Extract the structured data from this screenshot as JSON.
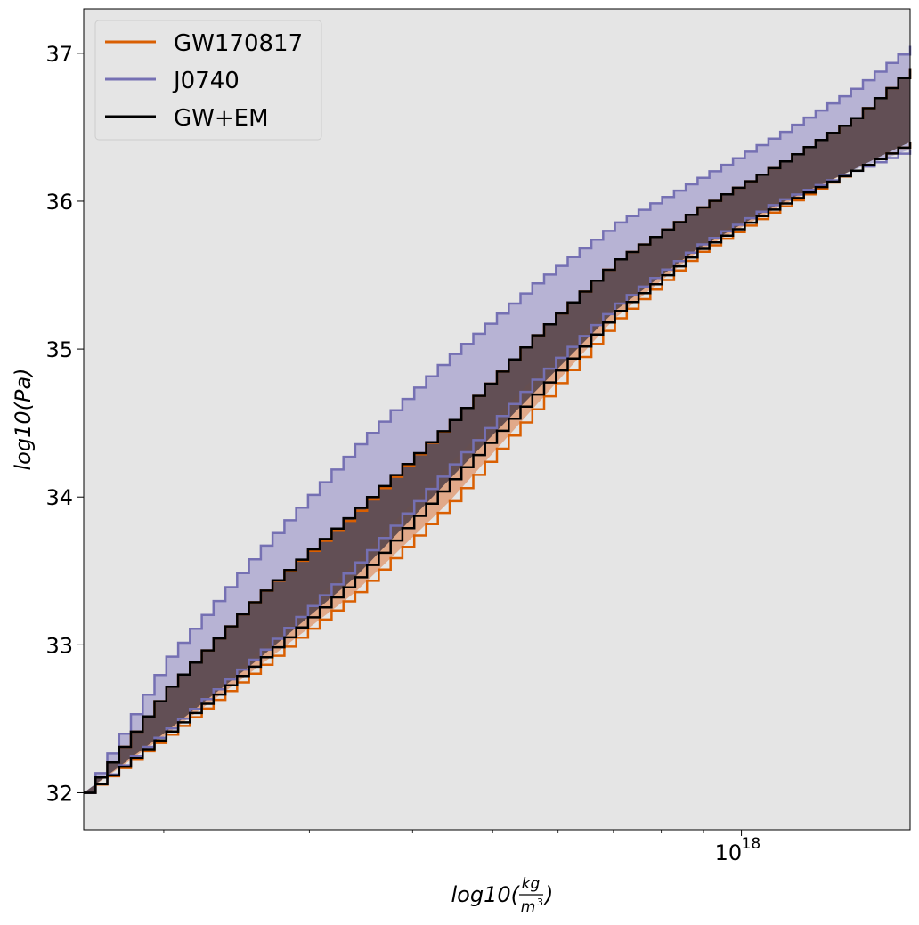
{
  "chart_data": {
    "type": "area",
    "xlabel": {
      "prefix": "log10(",
      "num": "kg",
      "den": "m",
      "den_exp": "3",
      "suffix": ")"
    },
    "ylabel": "log10(Pa)",
    "x_scale": "log",
    "xlim": [
      1.6e+17,
      1.6e+18
    ],
    "ylim": [
      31.75,
      37.3
    ],
    "grid": false,
    "background": "#e5e5e5",
    "y_ticks": [
      "32",
      "33",
      "34",
      "35",
      "36",
      "37"
    ],
    "x_ticks": [
      {
        "value": 1e+18,
        "base": "10",
        "exp": "18"
      }
    ],
    "legend": {
      "placement": "top-left"
    },
    "series": [
      {
        "name": "GW170817",
        "color": "#d95f02",
        "fill": "#e0a27e",
        "x": [
          1.6e+17,
          2e+17,
          2.6e+17,
          3.4e+17,
          4.4e+17,
          5.6e+17,
          7e+17,
          8.8e+17,
          1.1e+18,
          1.35e+18,
          1.6e+18
        ],
        "lower": [
          32.0,
          32.38,
          32.85,
          33.35,
          33.95,
          34.6,
          35.2,
          35.65,
          35.95,
          36.2,
          36.4
        ],
        "upper": [
          32.0,
          32.7,
          33.35,
          33.9,
          34.5,
          35.1,
          35.6,
          35.95,
          36.25,
          36.55,
          36.9
        ]
      },
      {
        "name": "J0740",
        "color": "#7570b3",
        "fill": "#b1add1",
        "x": [
          1.6e+17,
          2e+17,
          2.6e+17,
          3.4e+17,
          4.4e+17,
          5.6e+17,
          7e+17,
          8.8e+17,
          1.1e+18,
          1.35e+18,
          1.6e+18
        ],
        "lower": [
          32.0,
          32.42,
          32.95,
          33.55,
          34.2,
          34.8,
          35.3,
          35.7,
          36.0,
          36.2,
          36.35
        ],
        "upper": [
          32.0,
          32.9,
          33.65,
          34.35,
          34.95,
          35.45,
          35.85,
          36.15,
          36.45,
          36.75,
          37.05
        ]
      },
      {
        "name": "GW+EM",
        "color": "#000000",
        "fill": "#5e4a4e",
        "x": [
          1.6e+17,
          2e+17,
          2.6e+17,
          3.4e+17,
          4.4e+17,
          5.6e+17,
          7e+17,
          8.8e+17,
          1.1e+18,
          1.35e+18,
          1.6e+18
        ],
        "lower": [
          32.0,
          32.4,
          32.9,
          33.45,
          34.1,
          34.7,
          35.25,
          35.67,
          35.97,
          36.2,
          36.4
        ],
        "upper": [
          32.0,
          32.7,
          33.35,
          33.92,
          34.5,
          35.1,
          35.6,
          35.95,
          36.25,
          36.55,
          36.9
        ]
      }
    ]
  }
}
